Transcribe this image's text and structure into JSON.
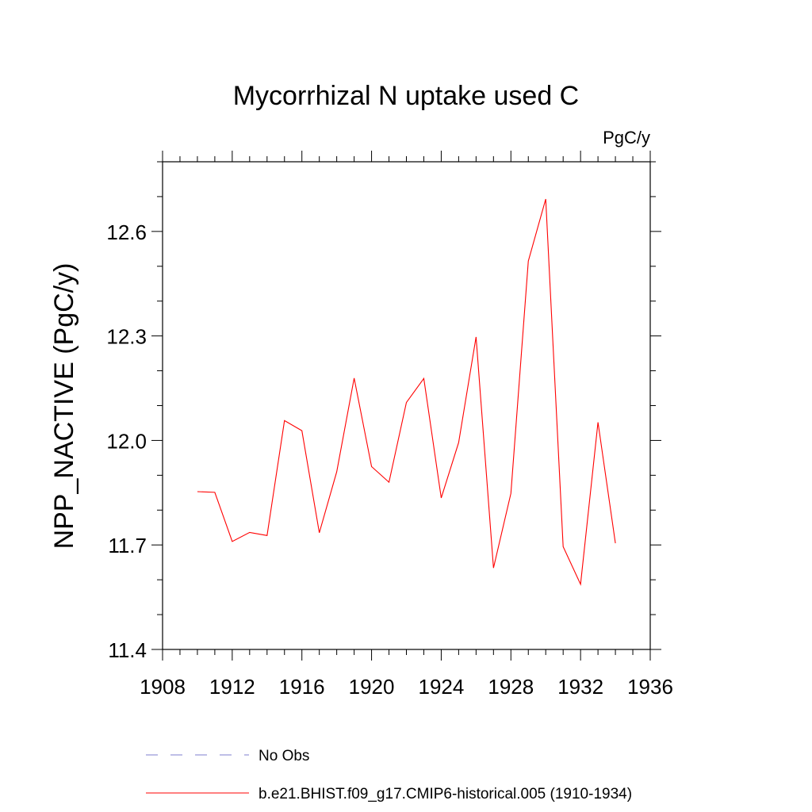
{
  "chart_data": {
    "type": "line",
    "title": "Mycorrhizal N uptake used C",
    "units_label": "PgC/y",
    "ylabel": "NPP_NACTIVE  (PgC/y)",
    "xlabel": "",
    "xlim": [
      1908,
      1936
    ],
    "ylim": [
      11.4,
      12.8
    ],
    "x_ticks": [
      1908,
      1912,
      1916,
      1920,
      1924,
      1928,
      1932,
      1936
    ],
    "x_tick_labels": [
      "1908",
      "1912",
      "1916",
      "1920",
      "1924",
      "1928",
      "1932",
      "1936"
    ],
    "x_minor_step": 1,
    "y_ticks": [
      11.4,
      11.7,
      12.0,
      12.3,
      12.6
    ],
    "y_tick_labels": [
      "11.4",
      "11.7",
      "12.0",
      "12.3",
      "12.6"
    ],
    "y_minor_step": 0.1,
    "grid": false,
    "legend_position": "bottom",
    "x": [
      1910,
      1911,
      1912,
      1913,
      1914,
      1915,
      1916,
      1917,
      1918,
      1919,
      1920,
      1921,
      1922,
      1923,
      1924,
      1925,
      1926,
      1927,
      1928,
      1929,
      1930,
      1931,
      1932,
      1933,
      1934
    ],
    "series": [
      {
        "name": "b.e21.BHIST.f09_g17.CMIP6-historical.005 (1910-1934)",
        "color": "#ff0000",
        "dash": "solid",
        "values": [
          11.853,
          11.851,
          11.71,
          11.736,
          11.727,
          12.057,
          12.028,
          11.735,
          11.91,
          12.179,
          11.925,
          11.88,
          12.109,
          12.178,
          11.835,
          11.994,
          12.297,
          11.634,
          11.848,
          12.515,
          12.693,
          11.695,
          11.587,
          12.052,
          11.705
        ]
      }
    ],
    "legend": [
      {
        "label": "No Obs",
        "color": "#7f7fcf",
        "dash": "dashed"
      },
      {
        "label": "b.e21.BHIST.f09_g17.CMIP6-historical.005 (1910-1934)",
        "color": "#ff0000",
        "dash": "solid"
      }
    ]
  }
}
